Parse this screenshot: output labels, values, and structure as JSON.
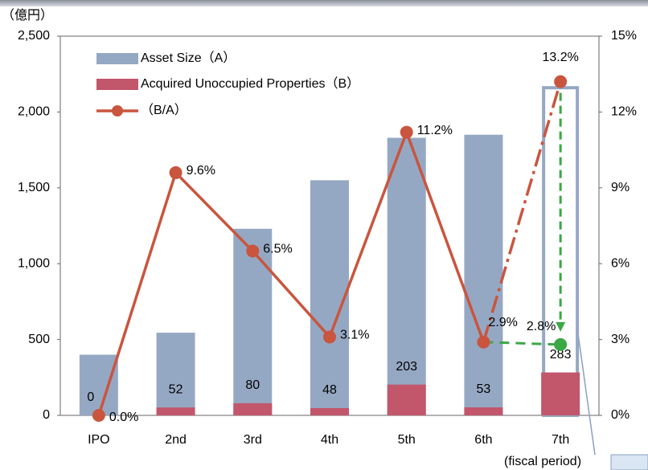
{
  "chart_data": {
    "type": "bar",
    "unit_label": "（億円）",
    "x_label": "(fiscal period)",
    "categories": [
      "IPO",
      "2nd",
      "3rd",
      "4th",
      "5th",
      "6th",
      "7th"
    ],
    "series": [
      {
        "name": "Asset Size（A）",
        "color": "#95a8c3",
        "values": [
          400,
          545,
          1230,
          1550,
          1830,
          1850,
          2160
        ]
      },
      {
        "name": "Acquired Unoccupied Properties（B）",
        "color": "#c2566b",
        "values": [
          0,
          52,
          80,
          48,
          203,
          53,
          283
        ]
      },
      {
        "name": "（B/A）",
        "color": "#c9553f",
        "axis": "y2",
        "values": [
          0.0,
          9.6,
          6.5,
          3.1,
          11.2,
          2.9,
          13.2
        ],
        "value_labels": [
          "0.0%",
          "9.6%",
          "6.5%",
          "3.1%",
          "11.2%",
          "2.9%",
          "13.2%"
        ]
      }
    ],
    "annotation": {
      "value": 2.8,
      "label": "2.8%",
      "color": "#3aa845"
    },
    "ylim": [
      0,
      2500
    ],
    "yticks": [
      0,
      500,
      {
        "value": 1000,
        "label": "1,000"
      },
      {
        "value": 1500,
        "label": "1,500"
      },
      {
        "value": 2000,
        "label": "2,000"
      },
      {
        "value": 2500,
        "label": "2,500"
      }
    ],
    "y2lim": [
      0,
      15
    ],
    "y2ticks": [
      {
        "value": 0,
        "label": "0%"
      },
      {
        "value": 3,
        "label": "3%"
      },
      {
        "value": 6,
        "label": "6%"
      },
      {
        "value": 9,
        "label": "9%"
      },
      {
        "value": 12,
        "label": "12%"
      },
      {
        "value": 15,
        "label": "15%"
      }
    ]
  }
}
